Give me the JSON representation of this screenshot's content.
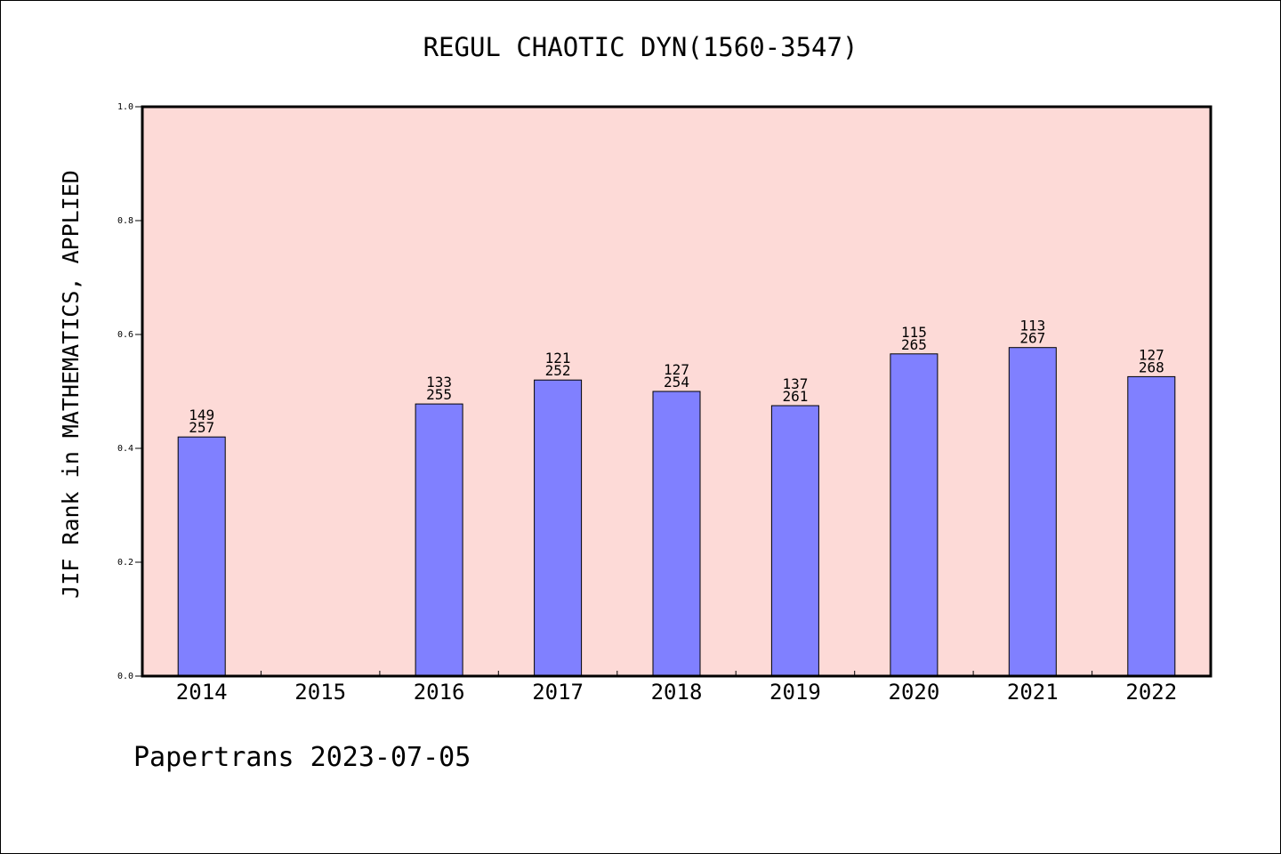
{
  "chart_data": {
    "type": "bar",
    "title": "REGUL CHAOTIC DYN(1560-3547)",
    "xlabel": "",
    "ylabel": "JIF Rank in MATHEMATICS, APPLIED",
    "ylim": [
      0,
      1.0
    ],
    "yticks": [
      "0.0",
      "0.2",
      "0.4",
      "0.6",
      "0.8",
      "1.0"
    ],
    "categories": [
      "2014",
      "2015",
      "2016",
      "2017",
      "2018",
      "2019",
      "2020",
      "2021",
      "2022"
    ],
    "values": [
      0.42,
      null,
      0.478,
      0.52,
      0.5,
      0.475,
      0.566,
      0.577,
      0.526
    ],
    "rank_labels": [
      [
        "149",
        "257"
      ],
      null,
      [
        "133",
        "255"
      ],
      [
        "121",
        "252"
      ],
      [
        "127",
        "254"
      ],
      [
        "137",
        "261"
      ],
      [
        "115",
        "265"
      ],
      [
        "113",
        "267"
      ],
      [
        "127",
        "268"
      ]
    ],
    "grid": false,
    "legend": "none",
    "colors": {
      "plot_background": "#fddad7",
      "bar_fill": "#8080ff",
      "bar_stroke": "#000000"
    }
  },
  "footer": {
    "text": "Papertrans 2023-07-05"
  }
}
